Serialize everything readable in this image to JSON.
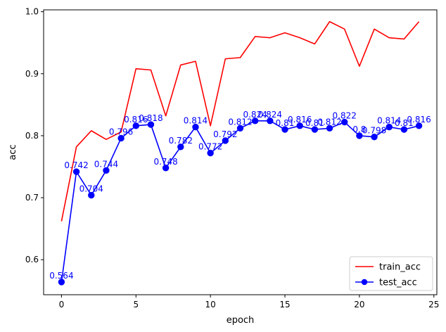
{
  "chart_data": {
    "type": "line",
    "xlabel": "epoch",
    "ylabel": "acc",
    "xlim": [
      -1.2,
      25.2
    ],
    "ylim": [
      0.5435,
      1.003
    ],
    "xticks": [
      0,
      5,
      10,
      15,
      20,
      25
    ],
    "yticks": [
      0.6,
      0.7,
      0.8,
      0.9,
      1.0
    ],
    "ytick_labels": [
      "0.6",
      "0.7",
      "0.8",
      "0.9",
      "1.0"
    ],
    "legend_position": "lower-right",
    "x": [
      0,
      1,
      2,
      3,
      4,
      5,
      6,
      7,
      8,
      9,
      10,
      11,
      12,
      13,
      14,
      15,
      16,
      17,
      18,
      19,
      20,
      21,
      22,
      23,
      24
    ],
    "series": [
      {
        "name": "train_acc",
        "color": "#ff0000",
        "marker": "none",
        "values": [
          0.662,
          0.782,
          0.808,
          0.794,
          0.806,
          0.908,
          0.906,
          0.832,
          0.914,
          0.92,
          0.816,
          0.924,
          0.926,
          0.96,
          0.958,
          0.966,
          0.958,
          0.948,
          0.984,
          0.972,
          0.912,
          0.972,
          0.958,
          0.956,
          0.984
        ]
      },
      {
        "name": "test_acc",
        "color": "#0000ff",
        "marker": "circle",
        "values": [
          0.564,
          0.742,
          0.704,
          0.744,
          0.796,
          0.816,
          0.818,
          0.748,
          0.782,
          0.814,
          0.772,
          0.792,
          0.812,
          0.824,
          0.824,
          0.81,
          0.816,
          0.81,
          0.812,
          0.822,
          0.8,
          0.798,
          0.814,
          0.81,
          0.816
        ],
        "labels": [
          "0.564",
          "0.742",
          "0.704",
          "0.744",
          "0.796",
          "0.816",
          "0.818",
          "0.748",
          "0.782",
          "0.814",
          "0.772",
          "0.792",
          "0.812",
          "0.824",
          "0.824",
          "0.81",
          "0.816",
          "0.81",
          "0.812",
          "0.822",
          "0.8",
          "0.798",
          "0.814",
          "0.81",
          "0.816"
        ]
      }
    ]
  }
}
